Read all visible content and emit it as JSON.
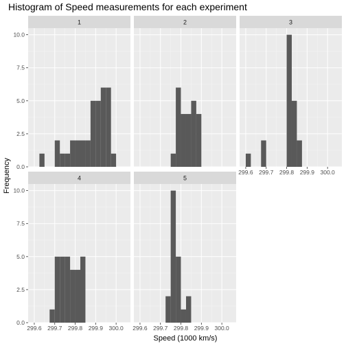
{
  "chart_data": {
    "type": "bar",
    "title": "Histogram of Speed measurements for each experiment",
    "xlabel": "Speed (1000 km/s)",
    "ylabel": "Frequency",
    "grid": true,
    "shared_x_ticks": [
      "299.6",
      "299.7",
      "299.8",
      "299.9",
      "300.0"
    ],
    "shared_y_ticks": [
      "0.0",
      "2.5",
      "5.0",
      "7.5",
      "10.0"
    ],
    "xlim": [
      299.57,
      300.07
    ],
    "ylim": [
      0,
      10.5
    ],
    "bin_width": 0.025,
    "panels": [
      {
        "label": "1",
        "bins": [
          {
            "x0": 299.625,
            "x1": 299.65,
            "count": 1
          },
          {
            "x0": 299.7,
            "x1": 299.725,
            "count": 2
          },
          {
            "x0": 299.725,
            "x1": 299.75,
            "count": 1
          },
          {
            "x0": 299.75,
            "x1": 299.775,
            "count": 1
          },
          {
            "x0": 299.775,
            "x1": 299.8,
            "count": 2
          },
          {
            "x0": 299.8,
            "x1": 299.825,
            "count": 2
          },
          {
            "x0": 299.825,
            "x1": 299.85,
            "count": 2
          },
          {
            "x0": 299.85,
            "x1": 299.875,
            "count": 2
          },
          {
            "x0": 299.875,
            "x1": 299.9,
            "count": 5
          },
          {
            "x0": 299.9,
            "x1": 299.925,
            "count": 5
          },
          {
            "x0": 299.925,
            "x1": 299.95,
            "count": 6
          },
          {
            "x0": 299.95,
            "x1": 299.975,
            "count": 6
          },
          {
            "x0": 299.975,
            "x1": 300.0,
            "count": 1
          }
        ]
      },
      {
        "label": "2",
        "bins": [
          {
            "x0": 299.75,
            "x1": 299.775,
            "count": 1
          },
          {
            "x0": 299.775,
            "x1": 299.8,
            "count": 6
          },
          {
            "x0": 299.8,
            "x1": 299.825,
            "count": 4
          },
          {
            "x0": 299.825,
            "x1": 299.85,
            "count": 4
          },
          {
            "x0": 299.85,
            "x1": 299.875,
            "count": 5
          },
          {
            "x0": 299.875,
            "x1": 299.9,
            "count": 4
          }
        ]
      },
      {
        "label": "3",
        "bins": [
          {
            "x0": 299.6,
            "x1": 299.625,
            "count": 1
          },
          {
            "x0": 299.675,
            "x1": 299.7,
            "count": 2
          },
          {
            "x0": 299.8,
            "x1": 299.825,
            "count": 10
          },
          {
            "x0": 299.825,
            "x1": 299.85,
            "count": 5
          },
          {
            "x0": 299.85,
            "x1": 299.875,
            "count": 2
          }
        ]
      },
      {
        "label": "4",
        "bins": [
          {
            "x0": 299.675,
            "x1": 299.7,
            "count": 1
          },
          {
            "x0": 299.7,
            "x1": 299.725,
            "count": 5
          },
          {
            "x0": 299.725,
            "x1": 299.75,
            "count": 5
          },
          {
            "x0": 299.75,
            "x1": 299.775,
            "count": 5
          },
          {
            "x0": 299.775,
            "x1": 299.8,
            "count": 4
          },
          {
            "x0": 299.8,
            "x1": 299.825,
            "count": 4
          },
          {
            "x0": 299.825,
            "x1": 299.85,
            "count": 5
          }
        ]
      },
      {
        "label": "5",
        "bins": [
          {
            "x0": 299.725,
            "x1": 299.75,
            "count": 2
          },
          {
            "x0": 299.75,
            "x1": 299.775,
            "count": 10
          },
          {
            "x0": 299.775,
            "x1": 299.8,
            "count": 5
          },
          {
            "x0": 299.8,
            "x1": 299.825,
            "count": 1
          },
          {
            "x0": 299.825,
            "x1": 299.85,
            "count": 2
          }
        ]
      }
    ]
  },
  "colors": {
    "panel_background": "#ebebeb",
    "grid_major": "#ffffff",
    "strip_background": "#d9d9d9",
    "bar_fill": "#595959"
  }
}
